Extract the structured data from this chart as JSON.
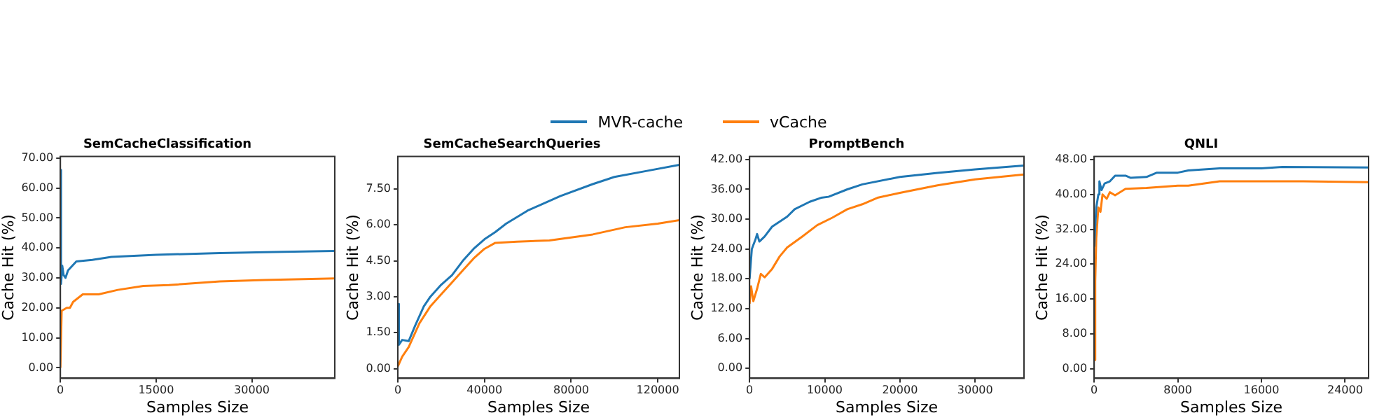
{
  "chart_data": [
    {
      "type": "line",
      "title": "SemCacheClassification",
      "xlabel": "Samples Size",
      "ylabel": "Cache Hit (%)",
      "legend": "top",
      "xlim": [
        0,
        43000
      ],
      "xticks": [
        0,
        15000,
        30000
      ],
      "ylim": [
        -3.5,
        70.5
      ],
      "yticks": [
        {
          "value": 0,
          "label": "0.00"
        },
        {
          "value": 10,
          "label": "10.00"
        },
        {
          "value": 20,
          "label": "20.00"
        },
        {
          "value": 30,
          "label": "30.00"
        },
        {
          "value": 40,
          "label": "40.00"
        },
        {
          "value": 50,
          "label": "50.00"
        },
        {
          "value": 60,
          "label": "60.00"
        },
        {
          "value": 70,
          "label": "70.00"
        }
      ],
      "grid": false,
      "marker": "none",
      "series": [
        {
          "name": "MVR-cache",
          "color": "#1f77b4",
          "x": [
            0,
            100,
            300,
            500,
            800,
            1200,
            2500,
            5000,
            8000,
            15000,
            25000,
            35000,
            43000
          ],
          "values": [
            66,
            28,
            34,
            31,
            30,
            32.5,
            35.5,
            36,
            37,
            37.7,
            38.3,
            38.7,
            39
          ]
        },
        {
          "name": "vCache",
          "color": "#ff7f0e",
          "x": [
            0,
            200,
            1000,
            1500,
            2000,
            3500,
            6000,
            9000,
            13000,
            17000,
            25000,
            32000,
            43000
          ],
          "values": [
            0,
            19,
            20,
            20,
            22,
            24.5,
            24.5,
            26,
            27.3,
            27.6,
            28.8,
            29.3,
            29.8
          ]
        }
      ]
    },
    {
      "type": "line",
      "title": "SemCacheSearchQueries",
      "xlabel": "Samples Size",
      "ylabel": "Cache Hit (%)",
      "xlim": [
        0,
        130000
      ],
      "xticks": [
        0,
        40000,
        80000,
        120000
      ],
      "ylim": [
        -0.4,
        8.85
      ],
      "yticks": [
        {
          "value": 0,
          "label": "0.00"
        },
        {
          "value": 1.5,
          "label": "1.50"
        },
        {
          "value": 3,
          "label": "3.00"
        },
        {
          "value": 4.5,
          "label": "4.50"
        },
        {
          "value": 6,
          "label": "6.00"
        },
        {
          "value": 7.5,
          "label": "7.50"
        }
      ],
      "grid": false,
      "marker": "none",
      "series": [
        {
          "color": "#1f77b4",
          "x": [
            0,
            500,
            2000,
            5000,
            8000,
            12000,
            15000,
            20000,
            25000,
            30000,
            35000,
            40000,
            45000,
            50000,
            60000,
            65000,
            75000,
            90000,
            100000,
            115000,
            130000
          ],
          "values": [
            2.7,
            1.0,
            1.2,
            1.15,
            1.8,
            2.6,
            3.0,
            3.5,
            3.9,
            4.5,
            5.0,
            5.4,
            5.7,
            6.05,
            6.6,
            6.8,
            7.2,
            7.7,
            8.0,
            8.25,
            8.5
          ]
        },
        {
          "color": "#ff7f0e",
          "x": [
            0,
            2000,
            5000,
            10000,
            15000,
            20000,
            25000,
            30000,
            35000,
            40000,
            45000,
            55000,
            70000,
            90000,
            105000,
            120000,
            130000
          ],
          "values": [
            0.1,
            0.5,
            0.9,
            1.9,
            2.6,
            3.1,
            3.6,
            4.1,
            4.6,
            5.0,
            5.25,
            5.3,
            5.35,
            5.6,
            5.9,
            6.05,
            6.2
          ]
        }
      ]
    },
    {
      "type": "line",
      "title": "PromptBench",
      "xlabel": "Samples Size",
      "ylabel": "Cache Hit (%)",
      "xlim": [
        0,
        36500
      ],
      "xticks": [
        0,
        10000,
        20000,
        30000
      ],
      "ylim": [
        -2,
        42.6
      ],
      "yticks": [
        {
          "value": 0,
          "label": "0.00"
        },
        {
          "value": 6,
          "label": "6.00"
        },
        {
          "value": 12,
          "label": "12.00"
        },
        {
          "value": 18,
          "label": "18.00"
        },
        {
          "value": 24,
          "label": "24.00"
        },
        {
          "value": 30,
          "label": "30.00"
        },
        {
          "value": 36,
          "label": "36.00"
        },
        {
          "value": 42,
          "label": "42.00"
        }
      ],
      "grid": false,
      "marker": "none",
      "series": [
        {
          "color": "#1f77b4",
          "x": [
            0,
            300,
            800,
            1000,
            1300,
            2000,
            3000,
            5000,
            6000,
            8000,
            9500,
            10500,
            13000,
            15000,
            20000,
            25000,
            30000,
            36500
          ],
          "values": [
            18,
            24,
            26,
            27,
            25.5,
            26.5,
            28.5,
            30.5,
            32,
            33.5,
            34.3,
            34.5,
            36,
            37,
            38.5,
            39.3,
            40,
            40.8
          ]
        },
        {
          "color": "#ff7f0e",
          "x": [
            0,
            200,
            500,
            1000,
            1500,
            2000,
            3000,
            4000,
            5000,
            7000,
            9000,
            11000,
            13000,
            15000,
            17000,
            20000,
            25000,
            30000,
            36500
          ],
          "values": [
            13,
            16.5,
            13.5,
            16,
            19,
            18.3,
            20,
            22.5,
            24.3,
            26.5,
            28.8,
            30.3,
            32,
            33,
            34.3,
            35.3,
            36.8,
            38,
            39
          ]
        }
      ]
    },
    {
      "type": "line",
      "title": "QNLI",
      "xlabel": "Samples Size",
      "ylabel": "Cache Hit (%)",
      "xlim": [
        0,
        26250
      ],
      "xticks": [
        0,
        8000,
        16000,
        24000
      ],
      "ylim": [
        -2.2,
        48.7
      ],
      "yticks": [
        {
          "value": 0,
          "label": "0.00"
        },
        {
          "value": 8,
          "label": "8.00"
        },
        {
          "value": 16,
          "label": "16.00"
        },
        {
          "value": 24,
          "label": "24.00"
        },
        {
          "value": 32,
          "label": "32.00"
        },
        {
          "value": 40,
          "label": "40.00"
        },
        {
          "value": 48,
          "label": "48.00"
        }
      ],
      "grid": false,
      "marker": "none",
      "series": [
        {
          "color": "#1f77b4",
          "x": [
            0,
            200,
            400,
            500,
            700,
            1000,
            1500,
            2000,
            3000,
            3500,
            5000,
            6000,
            8000,
            9000,
            12000,
            16000,
            18000,
            26250
          ],
          "values": [
            28,
            37,
            40,
            43,
            41,
            42.5,
            43,
            44.3,
            44.3,
            43.8,
            44,
            45,
            45,
            45.5,
            46,
            46,
            46.3,
            46.2
          ]
        },
        {
          "color": "#ff7f0e",
          "x": [
            0,
            100,
            200,
            400,
            600,
            800,
            1200,
            1500,
            2000,
            3000,
            5000,
            8000,
            9000,
            12000,
            16000,
            20000,
            26250
          ],
          "values": [
            2,
            20,
            30,
            37,
            36,
            40,
            39,
            40.5,
            39.8,
            41.3,
            41.5,
            42,
            42,
            43,
            43,
            43,
            42.8
          ]
        }
      ]
    }
  ]
}
